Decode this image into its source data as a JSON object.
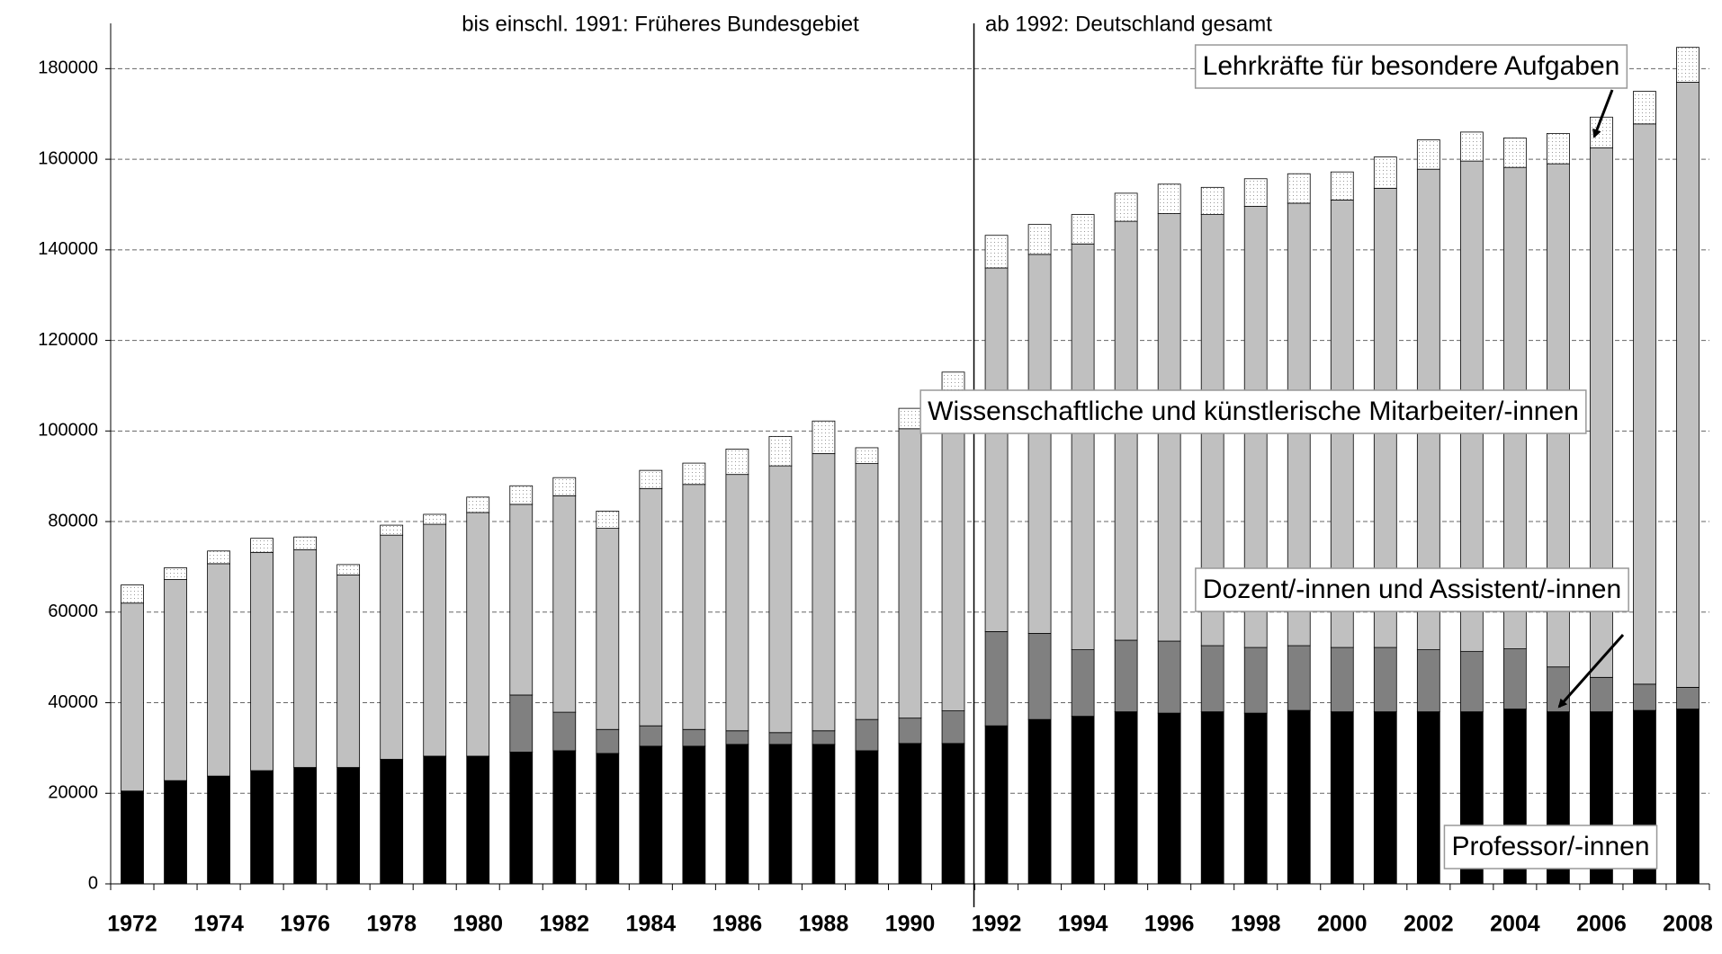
{
  "chart_data": {
    "type": "stacked_bar",
    "annotations": [
      "bis einschl. 1991: Früheres Bundesgebiet",
      "ab 1992: Deutschland gesamt"
    ],
    "categories": [
      "1972",
      null,
      "1974",
      null,
      "1976",
      null,
      "1978",
      null,
      "1980",
      null,
      "1982",
      null,
      "1984",
      null,
      "1986",
      null,
      "1988",
      null,
      "1990",
      null,
      "1992",
      null,
      "1994",
      null,
      "1996",
      null,
      "1998",
      null,
      "2000",
      null,
      "2002",
      null,
      "2004",
      null,
      "2006",
      null,
      "2008"
    ],
    "series": [
      {
        "name": "Professor/-innen",
        "color": "#000000",
        "values": [
          20500,
          22800,
          23800,
          25000,
          25700,
          25700,
          27500,
          28200,
          28200,
          29100,
          29400,
          28800,
          30400,
          30400,
          30800,
          30800,
          30800,
          29400,
          31000,
          31000,
          34900,
          36300,
          37000,
          38000,
          37700,
          38000,
          37700,
          38300,
          38000,
          38000,
          38000,
          38000,
          38600,
          38000,
          38000,
          38300,
          38600
        ]
      },
      {
        "name": "Dozent/-innen und Assistent/-innen",
        "color": "#808080",
        "values": [
          0,
          0,
          0,
          0,
          0,
          0,
          0,
          0,
          0,
          12600,
          8500,
          5300,
          4500,
          3700,
          3000,
          2600,
          3000,
          6900,
          5600,
          7200,
          20800,
          19000,
          14700,
          15800,
          15900,
          14600,
          14500,
          14300,
          14200,
          14200,
          13700,
          13300,
          13300,
          9900,
          7600,
          5800,
          4800
        ]
      },
      {
        "name": "Wissenschaftliche und künstlerische Mitarbeiter/-innen",
        "color": "#c0c0c0",
        "values": [
          41500,
          44400,
          46900,
          48200,
          48100,
          42500,
          49500,
          51200,
          53800,
          42100,
          47800,
          44400,
          52400,
          54100,
          56600,
          58900,
          61200,
          56500,
          63900,
          68300,
          80300,
          83700,
          89600,
          92500,
          94400,
          95200,
          97400,
          97700,
          98800,
          101400,
          106100,
          108300,
          106300,
          111100,
          116900,
          123700,
          133600
        ]
      },
      {
        "name": "Lehrkräfte für besondere Aufgaben",
        "color": "#ffffff",
        "values": [
          4000,
          2600,
          2800,
          3100,
          2800,
          2300,
          2200,
          2200,
          3400,
          4100,
          4000,
          3800,
          4000,
          4700,
          5600,
          6500,
          7200,
          3500,
          4500,
          6500,
          7200,
          6600,
          6500,
          6200,
          6500,
          6000,
          6100,
          6500,
          6200,
          6900,
          6500,
          6400,
          6500,
          6700,
          6800,
          7200,
          7700
        ]
      }
    ],
    "ylim": [
      0,
      190000
    ],
    "yticks": [
      0,
      20000,
      40000,
      60000,
      80000,
      100000,
      120000,
      140000,
      160000,
      180000
    ],
    "grid": true
  }
}
